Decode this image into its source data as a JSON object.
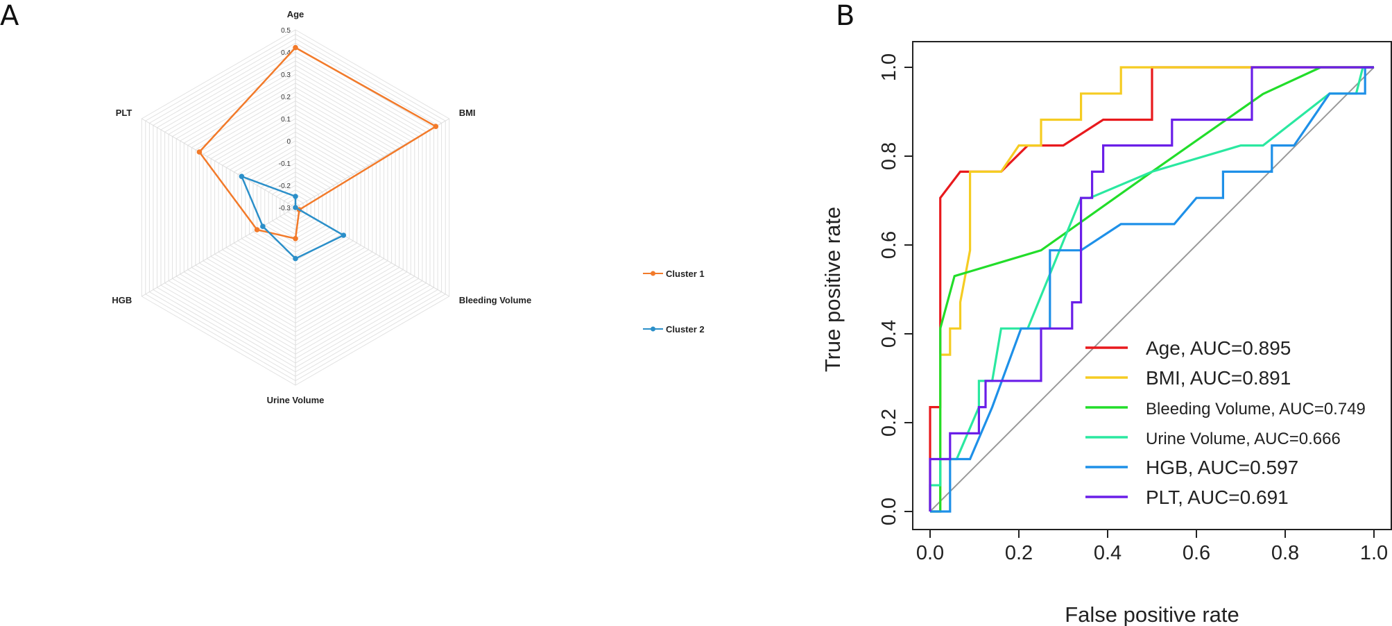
{
  "panels": {
    "left_letter": "A",
    "right_letter": "B"
  },
  "chart_data": [
    {
      "type": "radar",
      "panel": "A",
      "axes": [
        "Age",
        "BMI",
        "Bleeding Volume",
        "Urine Volume",
        "HGB",
        "PLT"
      ],
      "rlim": [
        -0.3,
        0.5
      ],
      "ticks": [
        "0.5",
        "0.4",
        "0.3",
        "0.2",
        "0.1",
        "0",
        "-0.1",
        "-0.2",
        "-0.3"
      ],
      "grid": true,
      "legend_position": "right",
      "series": [
        {
          "name": "Cluster 1",
          "color": "#f27a2a",
          "values": [
            0.42,
            0.43,
            -0.28,
            -0.16,
            -0.1,
            0.2
          ]
        },
        {
          "name": "Cluster 2",
          "color": "#2b8fc9",
          "values": [
            -0.25,
            -0.3,
            -0.05,
            -0.07,
            -0.13,
            -0.02
          ]
        }
      ]
    },
    {
      "type": "line",
      "panel": "B",
      "xlabel": "False positive rate",
      "ylabel": "True positive rate",
      "xlim": [
        0,
        1
      ],
      "ylim": [
        0,
        1
      ],
      "xticks": [
        "0.0",
        "0.2",
        "0.4",
        "0.6",
        "0.8",
        "1.0"
      ],
      "yticks": [
        "0.0",
        "0.2",
        "0.4",
        "0.6",
        "0.8",
        "1.0"
      ],
      "diagonal_color": "#999999",
      "legend_position": "bottom-right",
      "series": [
        {
          "name": "Age",
          "label": "Age, AUC=0.895",
          "color": "#e8191d",
          "points": [
            [
              0,
              0
            ],
            [
              0,
              0.235
            ],
            [
              0.023,
              0.235
            ],
            [
              0.023,
              0.706
            ],
            [
              0.068,
              0.765
            ],
            [
              0.16,
              0.765
            ],
            [
              0.22,
              0.824
            ],
            [
              0.3,
              0.824
            ],
            [
              0.39,
              0.882
            ],
            [
              0.5,
              0.882
            ],
            [
              0.5,
              1
            ],
            [
              1,
              1
            ]
          ]
        },
        {
          "name": "BMI",
          "label": "BMI, AUC=0.891",
          "color": "#f5cc22",
          "points": [
            [
              0,
              0
            ],
            [
              0.023,
              0
            ],
            [
              0.023,
              0.353
            ],
            [
              0.045,
              0.353
            ],
            [
              0.045,
              0.412
            ],
            [
              0.068,
              0.412
            ],
            [
              0.068,
              0.471
            ],
            [
              0.09,
              0.588
            ],
            [
              0.09,
              0.765
            ],
            [
              0.16,
              0.765
            ],
            [
              0.2,
              0.824
            ],
            [
              0.25,
              0.824
            ],
            [
              0.25,
              0.882
            ],
            [
              0.34,
              0.882
            ],
            [
              0.34,
              0.941
            ],
            [
              0.43,
              0.941
            ],
            [
              0.43,
              1
            ],
            [
              1,
              1
            ]
          ]
        },
        {
          "name": "Bleeding Volume",
          "label": "Bleeding Volume, AUC=0.749",
          "color": "#22dd2a",
          "points": [
            [
              0,
              0
            ],
            [
              0.023,
              0
            ],
            [
              0.023,
              0.412
            ],
            [
              0.055,
              0.53
            ],
            [
              0.25,
              0.588
            ],
            [
              0.5,
              0.765
            ],
            [
              0.75,
              0.94
            ],
            [
              0.88,
              1
            ],
            [
              1,
              1
            ]
          ]
        },
        {
          "name": "Urine Volume",
          "label": "Urine Volume, AUC=0.666",
          "color": "#2ae8a0",
          "points": [
            [
              0,
              0
            ],
            [
              0,
              0.059
            ],
            [
              0.023,
              0.059
            ],
            [
              0.023,
              0.118
            ],
            [
              0.06,
              0.118
            ],
            [
              0.11,
              0.235
            ],
            [
              0.11,
              0.294
            ],
            [
              0.14,
              0.294
            ],
            [
              0.16,
              0.412
            ],
            [
              0.22,
              0.412
            ],
            [
              0.34,
              0.706
            ],
            [
              0.36,
              0.706
            ],
            [
              0.5,
              0.765
            ],
            [
              0.7,
              0.824
            ],
            [
              0.75,
              0.824
            ],
            [
              0.9,
              0.941
            ],
            [
              0.96,
              0.941
            ],
            [
              0.975,
              1
            ],
            [
              1,
              1
            ]
          ]
        },
        {
          "name": "HGB",
          "label": "HGB, AUC=0.597",
          "color": "#1e90e8",
          "points": [
            [
              0,
              0
            ],
            [
              0.045,
              0
            ],
            [
              0.045,
              0.118
            ],
            [
              0.09,
              0.118
            ],
            [
              0.14,
              0.235
            ],
            [
              0.205,
              0.412
            ],
            [
              0.27,
              0.412
            ],
            [
              0.27,
              0.588
            ],
            [
              0.34,
              0.588
            ],
            [
              0.43,
              0.647
            ],
            [
              0.55,
              0.647
            ],
            [
              0.6,
              0.706
            ],
            [
              0.66,
              0.706
            ],
            [
              0.66,
              0.765
            ],
            [
              0.77,
              0.765
            ],
            [
              0.77,
              0.824
            ],
            [
              0.82,
              0.824
            ],
            [
              0.9,
              0.941
            ],
            [
              0.98,
              0.941
            ],
            [
              0.98,
              1
            ],
            [
              1,
              1
            ]
          ]
        },
        {
          "name": "PLT",
          "label": "PLT, AUC=0.691",
          "color": "#6a1ee8",
          "points": [
            [
              0,
              0
            ],
            [
              0,
              0.118
            ],
            [
              0.045,
              0.118
            ],
            [
              0.045,
              0.176
            ],
            [
              0.11,
              0.176
            ],
            [
              0.11,
              0.235
            ],
            [
              0.125,
              0.235
            ],
            [
              0.125,
              0.294
            ],
            [
              0.25,
              0.294
            ],
            [
              0.25,
              0.412
            ],
            [
              0.32,
              0.412
            ],
            [
              0.32,
              0.471
            ],
            [
              0.34,
              0.471
            ],
            [
              0.34,
              0.706
            ],
            [
              0.365,
              0.706
            ],
            [
              0.365,
              0.765
            ],
            [
              0.39,
              0.765
            ],
            [
              0.39,
              0.824
            ],
            [
              0.545,
              0.824
            ],
            [
              0.545,
              0.882
            ],
            [
              0.725,
              0.882
            ],
            [
              0.725,
              1
            ],
            [
              1,
              1
            ]
          ]
        }
      ]
    }
  ]
}
